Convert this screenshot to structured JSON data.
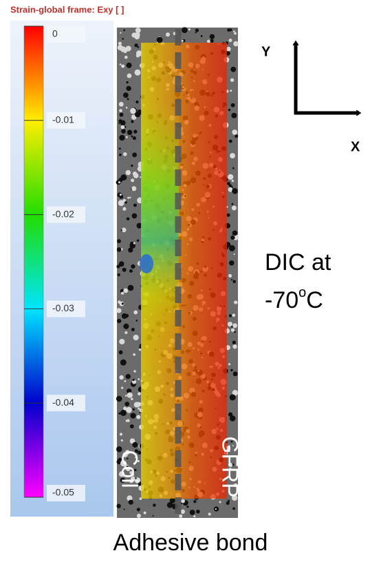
{
  "colorbar": {
    "title": "Strain-global frame: Exy [ ]",
    "lim": [
      0,
      -0.05
    ],
    "ticks": [
      0,
      -0.01,
      -0.02,
      -0.03,
      -0.04,
      -0.05
    ]
  },
  "axes": {
    "y": "Y",
    "x": "X"
  },
  "specimen": {
    "left": "Coil",
    "right": "GFRP"
  },
  "annotation": {
    "line1": "DIC at",
    "temp": "-70",
    "sup": "o",
    "unit": "C"
  },
  "caption": "Adhesive bond"
}
